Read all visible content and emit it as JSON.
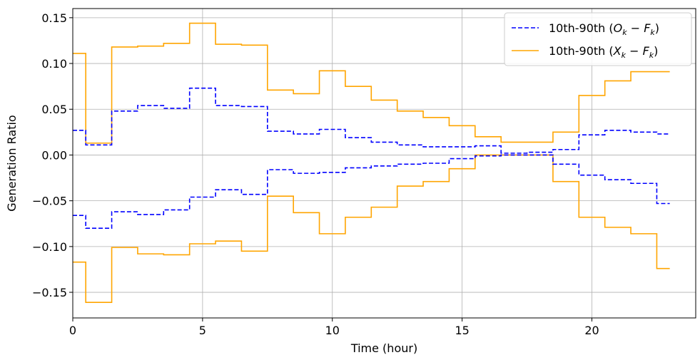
{
  "chart_data": {
    "type": "line",
    "xlabel": "Time (hour)",
    "ylabel": "Generation Ratio",
    "xlim": [
      0,
      24
    ],
    "ylim": [
      -0.178,
      0.16
    ],
    "xticks": [
      0,
      5,
      10,
      15,
      20
    ],
    "xtick_labels": [
      "0",
      "5",
      "10",
      "15",
      "20"
    ],
    "yticks": [
      -0.15,
      -0.1,
      -0.05,
      0.0,
      0.05,
      0.1,
      0.15
    ],
    "ytick_labels": [
      "−0.15",
      "−0.10",
      "−0.05",
      "0.00",
      "0.05",
      "0.10",
      "0.15"
    ],
    "grid": true,
    "legend_position": "top-right",
    "step": "mid",
    "x": [
      0,
      1,
      2,
      3,
      4,
      5,
      6,
      7,
      8,
      9,
      10,
      11,
      12,
      13,
      14,
      15,
      16,
      17,
      18,
      19,
      20,
      21,
      22,
      23
    ],
    "series": [
      {
        "legend_base": "10th-90th (",
        "legend_math": "O",
        "legend_sub": "k",
        "legend_tail": " − F",
        "legend_sub2": "k",
        "legend_close": ")",
        "color": "#0000ff",
        "style": "dashed",
        "upper": [
          0.027,
          0.011,
          0.048,
          0.054,
          0.051,
          0.073,
          0.054,
          0.053,
          0.026,
          0.023,
          0.028,
          0.019,
          0.014,
          0.011,
          0.009,
          0.009,
          0.01,
          0.002,
          0.003,
          0.006,
          0.022,
          0.027,
          0.025,
          0.023
        ],
        "lower": [
          -0.066,
          -0.08,
          -0.062,
          -0.065,
          -0.06,
          -0.046,
          -0.038,
          -0.043,
          -0.016,
          -0.02,
          -0.019,
          -0.014,
          -0.012,
          -0.01,
          -0.009,
          -0.004,
          -0.001,
          0.0,
          0.0,
          -0.01,
          -0.022,
          -0.027,
          -0.031,
          -0.053
        ]
      },
      {
        "legend_base": "10th-90th (",
        "legend_math": "X",
        "legend_sub": "k",
        "legend_tail": " − F",
        "legend_sub2": "k",
        "legend_close": ")",
        "color": "#ffa500",
        "style": "solid",
        "upper": [
          0.111,
          0.013,
          0.118,
          0.119,
          0.122,
          0.144,
          0.121,
          0.12,
          0.071,
          0.067,
          0.092,
          0.075,
          0.06,
          0.048,
          0.041,
          0.032,
          0.02,
          0.014,
          0.014,
          0.025,
          0.065,
          0.081,
          0.091,
          0.091
        ],
        "lower": [
          -0.117,
          -0.161,
          -0.101,
          -0.108,
          -0.109,
          -0.097,
          -0.094,
          -0.105,
          -0.045,
          -0.063,
          -0.086,
          -0.068,
          -0.057,
          -0.034,
          -0.029,
          -0.015,
          0.0,
          0.0,
          0.0,
          -0.029,
          -0.068,
          -0.079,
          -0.086,
          -0.124
        ]
      }
    ]
  }
}
